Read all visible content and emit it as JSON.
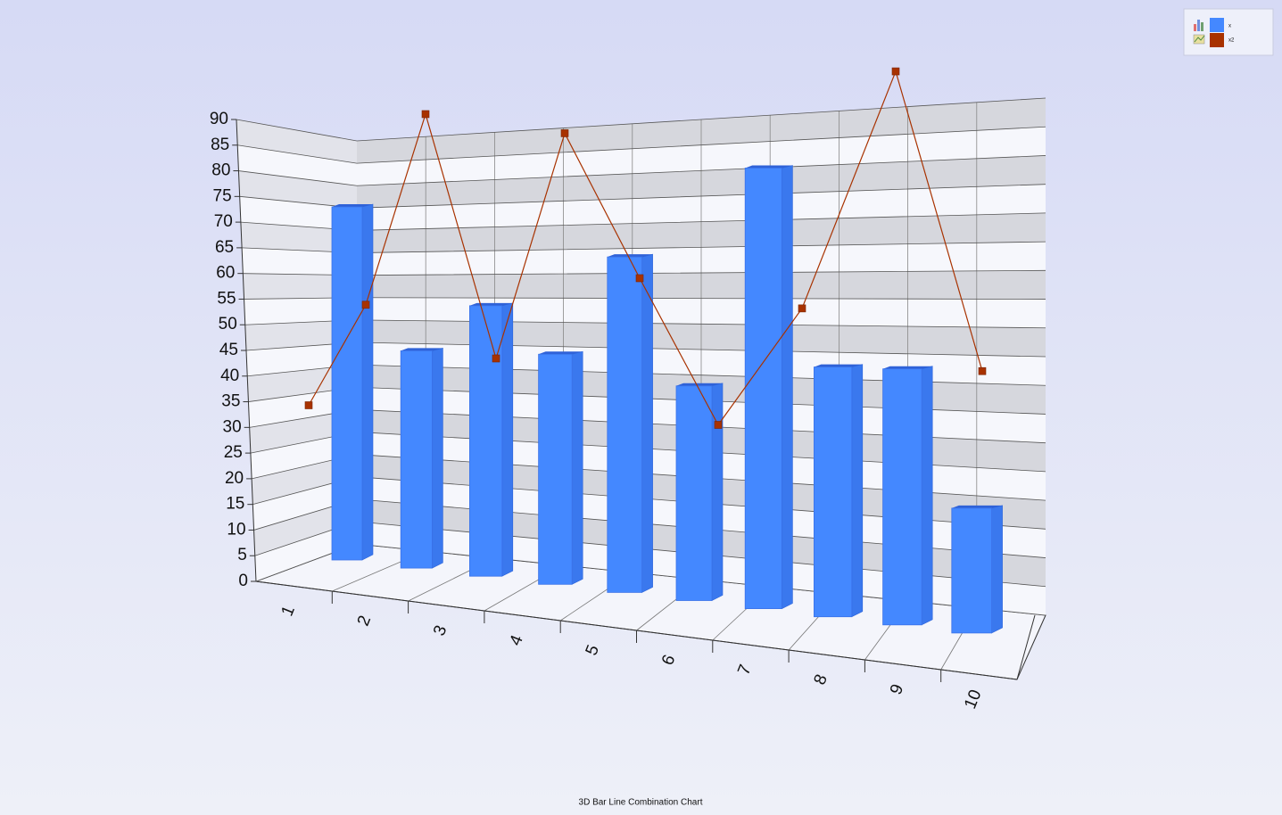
{
  "chart_data": {
    "type": "bar-line-3d",
    "title": "3D Bar Line Combination Chart",
    "categories": [
      "1",
      "2",
      "3",
      "4",
      "5",
      "6",
      "7",
      "8",
      "9",
      "10"
    ],
    "series": [
      {
        "name": "x",
        "type": "bar",
        "color": "#4488ff",
        "values": [
          72,
          43,
          52,
          43,
          61,
          38,
          76,
          42,
          42,
          20
        ]
      },
      {
        "name": "x2",
        "type": "line",
        "color": "#a83200",
        "values": [
          35,
          56,
          94,
          45,
          88,
          60,
          33,
          54,
          95,
          43
        ]
      }
    ],
    "ylim": [
      0,
      90
    ],
    "yticks": [
      0,
      5,
      10,
      15,
      20,
      25,
      30,
      35,
      40,
      45,
      50,
      55,
      60,
      65,
      70,
      75,
      80,
      85,
      90
    ],
    "grid": true,
    "legend": "top-right"
  }
}
